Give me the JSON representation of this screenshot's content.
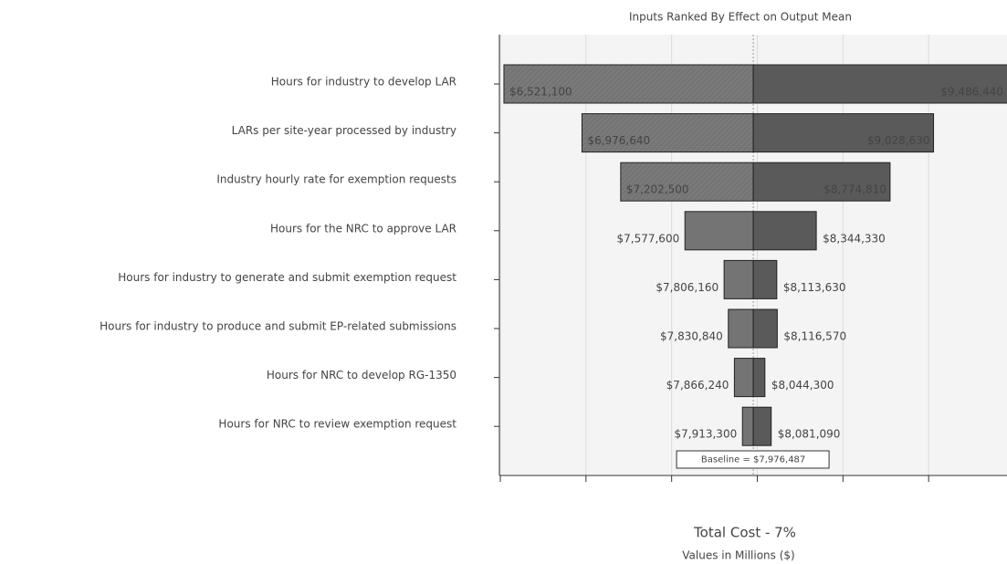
{
  "chart_data": {
    "type": "tornado",
    "title": "Inputs Ranked By Effect on Output Mean",
    "xlabel": "Total Cost - 7%",
    "subtitle": "Values in Millions ($)",
    "categories": [
      "Hours for industry to develop LAR",
      "LARs per site-year processed by industry",
      "Industry hourly rate for exemption requests",
      "Hours for the NRC to approve LAR",
      "Hours for industry to generate and submit exemption request",
      "Hours for industry to produce and submit EP-related submissions",
      "Hours for NRC to develop RG-1350",
      "Hours for NRC to review exemption request"
    ],
    "low_values": [
      6521100,
      6976640,
      7202500,
      7577600,
      7806160,
      7830840,
      7866240,
      7913300
    ],
    "low_value_labels": [
      "$6,521,100",
      "$6,976,640",
      "$7,202,500",
      "$7,577,600",
      "$7,806,160",
      "$7,830,840",
      "$7,866,240",
      "$7,913,300"
    ],
    "high_values": [
      9486440,
      9028630,
      8774810,
      8344330,
      8113630,
      8116570,
      8044300,
      8081090
    ],
    "high_value_labels": [
      "$9,486,440",
      "$9,028,630",
      "$8,774,810",
      "$8,344,330",
      "$8,113,630",
      "$8,116,570",
      "$8,044,300",
      "$8,081,090"
    ],
    "baseline": 7976487,
    "baseline_label": "Baseline = $7,976,487",
    "xlim": [
      6500000,
      9500000
    ],
    "xticks": [
      6500000,
      7000000,
      7500000,
      8000000,
      8500000,
      9000000,
      9500000
    ],
    "grid": true,
    "low_color": "#747474",
    "high_color": "#5a5a5a"
  }
}
